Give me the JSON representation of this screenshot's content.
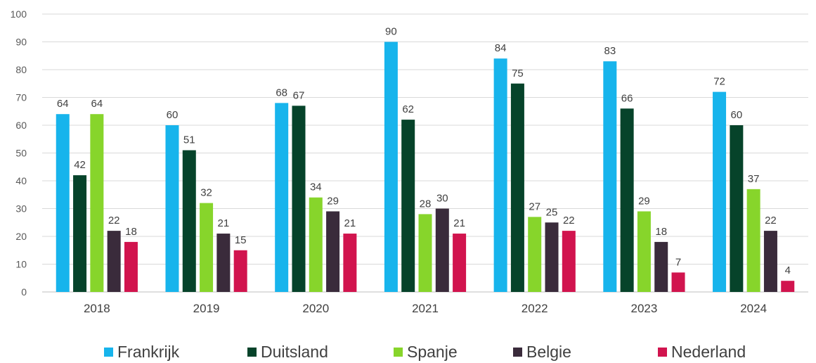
{
  "chart_data": {
    "type": "bar",
    "title": "",
    "xlabel": "",
    "ylabel": "",
    "ylim": [
      0,
      100
    ],
    "yticks": [
      0,
      10,
      20,
      30,
      40,
      50,
      60,
      70,
      80,
      90,
      100
    ],
    "grid": true,
    "legend_position": "bottom",
    "categories": [
      "2018",
      "2019",
      "2020",
      "2021",
      "2022",
      "2023",
      "2024"
    ],
    "series": [
      {
        "name": "Frankrijk",
        "color": "#17b4ec",
        "values": [
          64,
          60,
          68,
          90,
          84,
          83,
          72
        ]
      },
      {
        "name": "Duitsland",
        "color": "#06432a",
        "values": [
          42,
          51,
          67,
          62,
          75,
          66,
          60
        ]
      },
      {
        "name": "Spanje",
        "color": "#87d52b",
        "values": [
          64,
          32,
          34,
          28,
          27,
          29,
          37
        ]
      },
      {
        "name": "Belgie",
        "color": "#3a2b3b",
        "values": [
          22,
          21,
          29,
          30,
          25,
          18,
          22
        ]
      },
      {
        "name": "Nederland",
        "color": "#d1144e",
        "values": [
          18,
          15,
          21,
          21,
          22,
          7,
          4
        ]
      }
    ]
  }
}
